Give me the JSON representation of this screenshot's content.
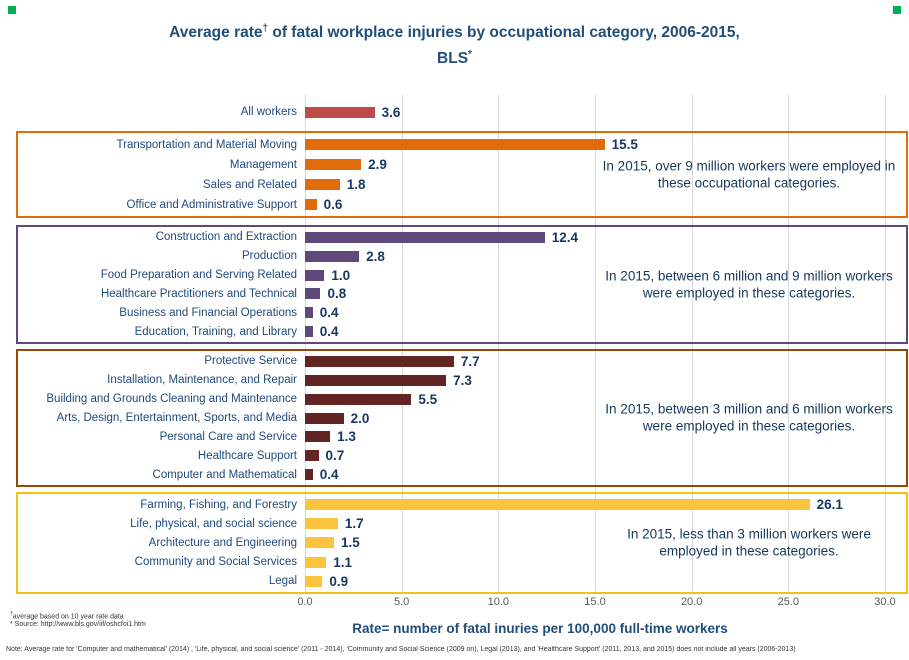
{
  "title": {
    "prefix": "Average rate",
    "dagger_sup": "†",
    "rest": " of fatal workplace injuries by occupational category, 2006-2015,",
    "line2_text": "BLS",
    "line2_sup": "*"
  },
  "chart_data": {
    "type": "bar",
    "orientation": "horizontal",
    "title": "Average rate† of fatal workplace injuries by occupational category, 2006-2015, BLS*",
    "xlabel": "Rate= number of fatal inuries per 100,000 full-time workers",
    "xlim": [
      0,
      30
    ],
    "x_ticks": [
      0,
      5,
      10,
      15,
      20,
      25,
      30
    ],
    "x_tick_labels": [
      "0.0",
      "5.0",
      "10.0",
      "15.0",
      "20.0",
      "25.0",
      "30.0"
    ],
    "grid": true,
    "legend": "none",
    "groups": [
      {
        "id": "all-workers",
        "bar_color": "#BE4B48",
        "box_color": null,
        "annotation": null,
        "items": [
          {
            "label": "All workers",
            "value": 3.6,
            "display": "3.6"
          }
        ]
      },
      {
        "id": "over-9-million",
        "bar_color": "#E36C0A",
        "box_color": "#E36C0A",
        "annotation": "In 2015, over 9 million workers were employed in these occupational categories.",
        "items": [
          {
            "label": "Transportation and Material Moving",
            "value": 15.5,
            "display": "15.5"
          },
          {
            "label": "Management",
            "value": 2.9,
            "display": "2.9"
          },
          {
            "label": "Sales and Related",
            "value": 1.8,
            "display": "1.8"
          },
          {
            "label": "Office and Administrative Support",
            "value": 0.6,
            "display": "0.6"
          }
        ]
      },
      {
        "id": "6-to-9-million",
        "bar_color": "#5F497A",
        "box_color": "#5F497A",
        "annotation": "In 2015, between 6 million and 9 million workers were employed in these categories.",
        "items": [
          {
            "label": "Construction and Extraction",
            "value": 12.4,
            "display": "12.4"
          },
          {
            "label": "Production",
            "value": 2.8,
            "display": "2.8"
          },
          {
            "label": "Food Preparation and Serving Related",
            "value": 1.0,
            "display": "1.0"
          },
          {
            "label": "Healthcare Practitioners and Technical",
            "value": 0.8,
            "display": "0.8"
          },
          {
            "label": "Business and Financial Operations",
            "value": 0.4,
            "display": "0.4"
          },
          {
            "label": "Education, Training, and Library",
            "value": 0.4,
            "display": "0.4"
          }
        ]
      },
      {
        "id": "3-to-6-million",
        "bar_color": "#632523",
        "box_color": "#974807",
        "annotation": "In 2015, between 3 million and 6 million workers were employed in these categories.",
        "items": [
          {
            "label": "Protective Service",
            "value": 7.7,
            "display": "7.7"
          },
          {
            "label": "Installation, Maintenance, and Repair",
            "value": 7.3,
            "display": "7.3"
          },
          {
            "label": "Building and Grounds Cleaning and Maintenance",
            "value": 5.5,
            "display": "5.5"
          },
          {
            "label": "Arts, Design, Entertainment, Sports, and Media",
            "value": 2.0,
            "display": "2.0"
          },
          {
            "label": "Personal Care and Service",
            "value": 1.3,
            "display": "1.3"
          },
          {
            "label": "Healthcare Support",
            "value": 0.7,
            "display": "0.7"
          },
          {
            "label": "Computer and Mathematical",
            "value": 0.4,
            "display": "0.4"
          }
        ]
      },
      {
        "id": "under-3-million",
        "bar_color": "#FCC33C",
        "box_color": "#F2C314",
        "annotation": "In 2015, less than 3 million workers were employed in these categories.",
        "items": [
          {
            "label": "Farming, Fishing, and Forestry",
            "value": 26.1,
            "display": "26.1"
          },
          {
            "label": "Life, physical, and social science",
            "value": 1.7,
            "display": "1.7"
          },
          {
            "label": "Architecture and Engineering",
            "value": 1.5,
            "display": "1.5"
          },
          {
            "label": "Community and Social Services",
            "value": 1.1,
            "display": "1.1"
          },
          {
            "label": "Legal",
            "value": 0.9,
            "display": "0.9"
          }
        ]
      }
    ]
  },
  "footnotes": {
    "f1_sup": "†",
    "f1_text": "average based on 10 year rate data",
    "f2_text": "* Source: http://www.bls.gov/iif/oshcfoi1.htm"
  },
  "bottom_note": "Note: Average rate for 'Computer and mathematical' (2014) , 'Life, physical, and social science' (2011 - 2014), 'Community and Social Science (2009 on), Legal (2013), and 'Healthcare Support' (2011, 2013, and 2015) does not include all years (2006-2013)",
  "colors": {
    "title": "#1F4E79",
    "category_label": "#1F497D",
    "value_label": "#17375E",
    "annotation_text": "#17375E",
    "tick_label": "#595959",
    "gridline": "#D9D9D9",
    "decoration": "#00B050"
  }
}
